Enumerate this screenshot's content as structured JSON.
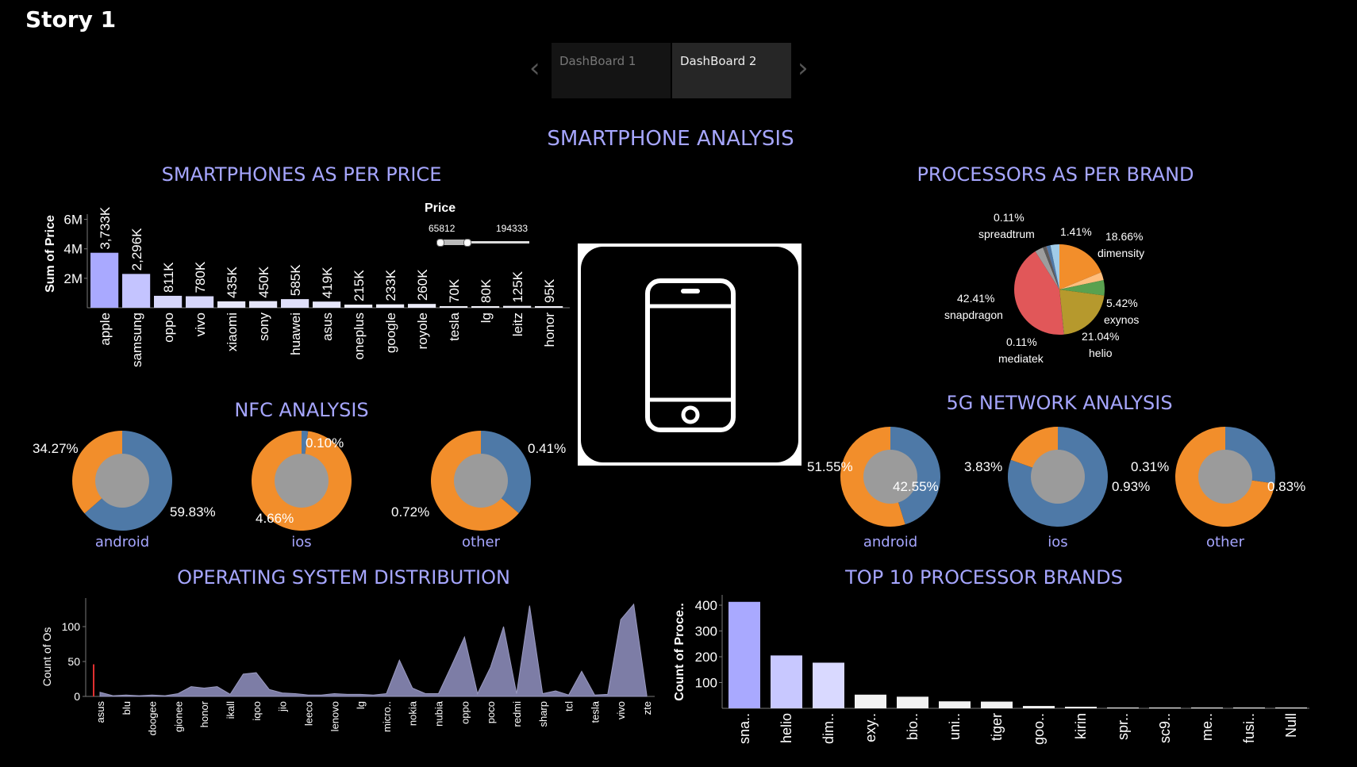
{
  "story_title": "Story 1",
  "tabs": [
    {
      "label": "DashBoard 1",
      "active": false
    },
    {
      "label": "DashBoard 2",
      "active": true
    }
  ],
  "nav": {
    "prev_icon": "chevron-left-icon",
    "next_icon": "chevron-right-icon"
  },
  "main_title": "SMARTPHONE ANALYSIS",
  "price_filter": {
    "label": "Price",
    "min": "65812",
    "max": "194333"
  },
  "phone_icon": "smartphone-icon",
  "titles": {
    "price": "SMARTPHONES AS PER PRICE",
    "processor": "PROCESSORS AS PER BRAND",
    "nfc": "NFC ANALYSIS",
    "fiveg": "5G NETWORK ANALYSIS",
    "os": "OPERATING SYSTEM DISTRIBUTION",
    "top10": "TOP 10 PROCESSOR BRANDS"
  },
  "chart_data": [
    {
      "id": "price",
      "type": "bar",
      "title": "SMARTPHONES AS PER PRICE",
      "ylabel": "Sum of Price",
      "ylim": [
        0,
        7000000
      ],
      "yticks": [
        {
          "v": 2000000,
          "label": "2M"
        },
        {
          "v": 4000000,
          "label": "4M"
        },
        {
          "v": 6000000,
          "label": "6M"
        }
      ],
      "categories": [
        "apple",
        "samsung",
        "oppo",
        "vivo",
        "xiaomi",
        "sony",
        "huawei",
        "asus",
        "oneplus",
        "google",
        "royole",
        "tesla",
        "lg",
        "leitz",
        "honor"
      ],
      "values": [
        3733000,
        2296000,
        811000,
        780000,
        435000,
        450000,
        585000,
        419000,
        215000,
        233000,
        260000,
        70000,
        80000,
        125000,
        95000
      ],
      "labels": [
        "3,733K",
        "2,296K",
        "811K",
        "780K",
        "435K",
        "450K",
        "585K",
        "419K",
        "215K",
        "233K",
        "260K",
        "70K",
        "80K",
        "125K",
        "95K"
      ],
      "colors": [
        "#a9a9ff",
        "#c4c4ff",
        "#d6d6fa",
        "#d6d6fa",
        "#e6e6fa",
        "#e6e6fa",
        "#e0e0fa",
        "#e6e6fa",
        "#ececfa",
        "#ececfa",
        "#ececfa",
        "#f2f2fa",
        "#f2f2fa",
        "#f0f0fa",
        "#f2f2fa"
      ]
    },
    {
      "id": "processor",
      "type": "pie",
      "title": "PROCESSORS AS PER BRAND",
      "slices": [
        {
          "label": "dimensity",
          "value": 18.66,
          "color": "#f28e2b"
        },
        {
          "label": "",
          "value": 2.9,
          "color": "#ffbe7d"
        },
        {
          "label": "exynos",
          "value": 5.42,
          "color": "#59a14f"
        },
        {
          "label": "helio",
          "value": 21.04,
          "color": "#b6992d"
        },
        {
          "label": "mediatek",
          "value": 0.11,
          "color": "#8cd17d"
        },
        {
          "label": "snapdragon",
          "value": 42.41,
          "color": "#e15759"
        },
        {
          "label": "",
          "value": 3.0,
          "color": "#9d9d9d"
        },
        {
          "label": "",
          "value": 1.2,
          "color": "#5a5a5a"
        },
        {
          "label": "spreadtrum",
          "value": 0.11,
          "color": "#ff9d9a"
        },
        {
          "label": "",
          "value": 1.41,
          "color": "#4e79a7"
        },
        {
          "label": "",
          "value": 3.2,
          "color": "#a0cbe8"
        }
      ],
      "annotations": [
        {
          "pct": "0.11%",
          "name": "spreadtrum"
        },
        {
          "pct": "1.41%",
          "name": ""
        },
        {
          "pct": "18.66%",
          "name": "dimensity"
        },
        {
          "pct": "42.41%",
          "name": "snapdragon"
        },
        {
          "pct": "5.42%",
          "name": "exynos"
        },
        {
          "pct": "0.11%",
          "name": "mediatek"
        },
        {
          "pct": "21.04%",
          "name": "helio"
        }
      ]
    },
    {
      "id": "nfc",
      "type": "pie",
      "title": "NFC ANALYSIS",
      "donuts": [
        {
          "name": "android",
          "slices": [
            {
              "value": 59.83,
              "color": "#4e79a7"
            },
            {
              "value": 34.27,
              "color": "#f28e2b"
            }
          ],
          "labels": [
            "34.27%",
            "59.83%"
          ]
        },
        {
          "name": "ios",
          "slices": [
            {
              "value": 0.1,
              "color": "#4e79a7"
            },
            {
              "value": 4.66,
              "color": "#f28e2b"
            }
          ],
          "labels": [
            "0.10%",
            "4.66%"
          ]
        },
        {
          "name": "other",
          "slices": [
            {
              "value": 0.41,
              "color": "#4e79a7"
            },
            {
              "value": 0.72,
              "color": "#f28e2b"
            }
          ],
          "labels": [
            "0.41%",
            "0.72%"
          ]
        }
      ]
    },
    {
      "id": "fiveg",
      "type": "pie",
      "title": "5G NETWORK ANALYSIS",
      "donuts": [
        {
          "name": "android",
          "slices": [
            {
              "value": 42.55,
              "color": "#4e79a7"
            },
            {
              "value": 51.55,
              "color": "#f28e2b"
            }
          ],
          "labels": [
            "51.55%",
            "42.55%"
          ]
        },
        {
          "name": "ios",
          "slices": [
            {
              "value": 3.83,
              "color": "#4e79a7"
            },
            {
              "value": 0.93,
              "color": "#f28e2b"
            }
          ],
          "labels": [
            "3.83%",
            "0.93%"
          ]
        },
        {
          "name": "other",
          "slices": [
            {
              "value": 0.31,
              "color": "#4e79a7"
            },
            {
              "value": 0.83,
              "color": "#f28e2b"
            }
          ],
          "labels": [
            "0.31%",
            "0.83%"
          ]
        }
      ]
    },
    {
      "id": "os",
      "type": "area",
      "title": "OPERATING SYSTEM DISTRIBUTION",
      "ylabel": "Count of Os",
      "ylim": [
        0,
        150
      ],
      "yticks": [
        0,
        50,
        100
      ],
      "x": [
        "asus",
        "",
        "blu",
        "",
        "doogee",
        "",
        "gionee",
        "",
        "honor",
        "",
        "ikall",
        "",
        "iqoo",
        "",
        "jio",
        "",
        "leeco",
        "",
        "lenovo",
        "",
        "lg",
        "",
        "micro..",
        "",
        "nokia",
        "",
        "nubia",
        "",
        "oppo",
        "",
        "poco",
        "",
        "redmi",
        "",
        "sharp",
        "",
        "tcl",
        "",
        "tesla",
        "",
        "vivo",
        "",
        "zte"
      ],
      "values": [
        6,
        1,
        2,
        1,
        2,
        1,
        4,
        14,
        12,
        14,
        3,
        32,
        34,
        10,
        5,
        4,
        2,
        2,
        4,
        3,
        3,
        2,
        4,
        52,
        12,
        4,
        4,
        44,
        85,
        4,
        42,
        100,
        4,
        130,
        4,
        8,
        2,
        36,
        2,
        3,
        110,
        132,
        2
      ],
      "color": "#7d7da6",
      "red_marker_value": 46
    },
    {
      "id": "top10",
      "type": "bar",
      "title": "TOP 10 PROCESSOR BRANDS",
      "ylabel": "Count of Proce..",
      "ylim": [
        0,
        440
      ],
      "yticks": [
        100,
        200,
        300,
        400
      ],
      "categories": [
        "sna..",
        "helio",
        "dim..",
        "exy..",
        "bio..",
        "uni..",
        "tiger",
        "goo..",
        "kirin",
        "spr..",
        "sc9..",
        "me..",
        "fusi..",
        "Null"
      ],
      "values": [
        413,
        205,
        177,
        53,
        45,
        27,
        26,
        9,
        6,
        3,
        2,
        1,
        1,
        1
      ],
      "colors": [
        "#a9a9ff",
        "#c8c8ff",
        "#d9d9ff",
        "#f2f2f2",
        "#f2f2f2",
        "#f2f2f2",
        "#f2f2f2",
        "#f2f2f2",
        "#f2f2f2",
        "#f2f2f2",
        "#f2f2f2",
        "#f2f2f2",
        "#f2f2f2",
        "#f2f2f2"
      ]
    }
  ]
}
